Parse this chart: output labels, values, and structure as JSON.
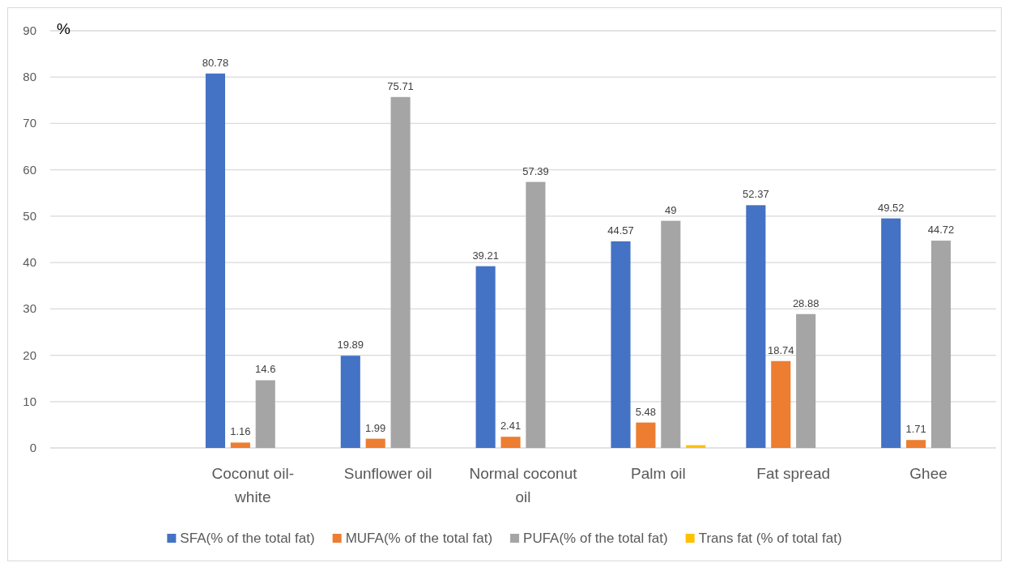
{
  "chart_data": {
    "type": "bar",
    "ylabel": "%",
    "categories": [
      null,
      "Coconut oil-white",
      "Sunflower oil",
      "Normal coconut oil",
      "Palm oil",
      "Fat spread",
      "Ghee"
    ],
    "series": [
      {
        "name": "SFA(% of the total fat)",
        "color": "#4472c4",
        "values": [
          null,
          80.78,
          19.89,
          39.21,
          44.57,
          52.37,
          49.52
        ],
        "value_labels": [
          null,
          "80.78",
          "19.89",
          "39.21",
          "44.57",
          "52.37",
          "49.52"
        ]
      },
      {
        "name": "MUFA(% of the total fat)",
        "color": "#ed7d31",
        "values": [
          null,
          1.16,
          1.99,
          2.41,
          5.48,
          18.74,
          1.71
        ],
        "value_labels": [
          null,
          "1.16",
          "1.99",
          "2.41",
          "5.48",
          "18.74",
          "1.71"
        ]
      },
      {
        "name": "PUFA(% of the total fat)",
        "color": "#a5a5a5",
        "values": [
          null,
          14.6,
          75.71,
          57.39,
          49,
          28.88,
          44.72
        ],
        "value_labels": [
          null,
          "14.6",
          "75.71",
          "57.39",
          "49",
          "28.88",
          "44.72"
        ]
      },
      {
        "name": "Trans fat (% of total fat)",
        "color": "#ffc000",
        "values": [
          null,
          null,
          null,
          null,
          0.6,
          null,
          null
        ]
      }
    ],
    "ylim": [
      0,
      90
    ],
    "yticks": [
      0,
      10,
      20,
      30,
      40,
      50,
      60,
      70,
      80,
      90
    ],
    "grid": "y",
    "legend": "bottom"
  }
}
